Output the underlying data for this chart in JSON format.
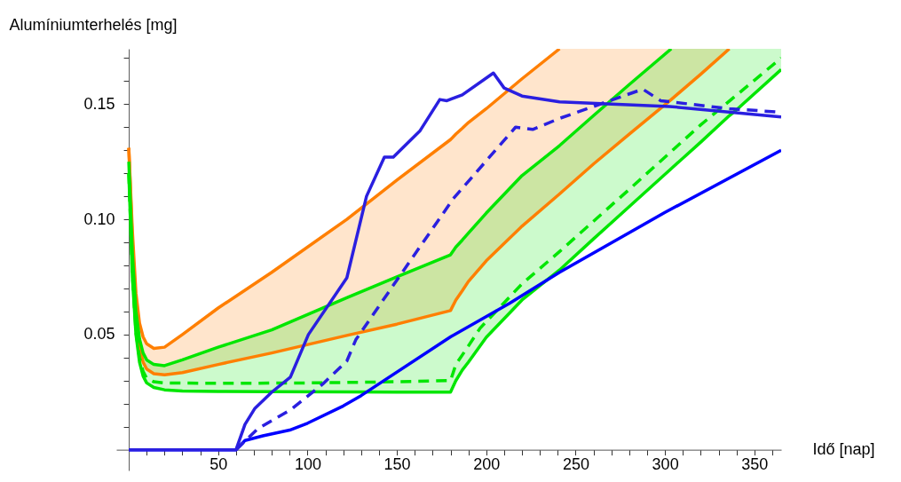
{
  "chart_data": {
    "type": "line",
    "xlabel": "Idő [nap]",
    "ylabel": "Alumíniumterhelés [mg]",
    "xlim": [
      -7,
      365
    ],
    "ylim": [
      -0.009,
      0.174
    ],
    "xticks": [
      {
        "value": 10,
        "label": null
      },
      {
        "value": 20,
        "label": null
      },
      {
        "value": 30,
        "label": null
      },
      {
        "value": 40,
        "label": null
      },
      50,
      {
        "value": 60,
        "label": null
      },
      {
        "value": 70,
        "label": null
      },
      {
        "value": 80,
        "label": null
      },
      {
        "value": 90,
        "label": null
      },
      100,
      {
        "value": 110,
        "label": null
      },
      {
        "value": 120,
        "label": null
      },
      {
        "value": 130,
        "label": null
      },
      {
        "value": 140,
        "label": null
      },
      150,
      {
        "value": 160,
        "label": null
      },
      {
        "value": 170,
        "label": null
      },
      {
        "value": 180,
        "label": null
      },
      {
        "value": 190,
        "label": null
      },
      200,
      {
        "value": 210,
        "label": null
      },
      {
        "value": 220,
        "label": null
      },
      {
        "value": 230,
        "label": null
      },
      {
        "value": 240,
        "label": null
      },
      250,
      {
        "value": 260,
        "label": null
      },
      {
        "value": 270,
        "label": null
      },
      {
        "value": 280,
        "label": null
      },
      {
        "value": 290,
        "label": null
      },
      300,
      {
        "value": 310,
        "label": null
      },
      {
        "value": 320,
        "label": null
      },
      {
        "value": 330,
        "label": null
      },
      {
        "value": 340,
        "label": null
      },
      350,
      {
        "value": 360,
        "label": null
      }
    ],
    "yticks": [
      {
        "value": 0.01,
        "label": null
      },
      {
        "value": 0.02,
        "label": null
      },
      {
        "value": 0.03,
        "label": null
      },
      {
        "value": 0.04,
        "label": null
      },
      {
        "value": 0.05,
        "label": "0.05"
      },
      {
        "value": 0.06,
        "label": null
      },
      {
        "value": 0.07,
        "label": null
      },
      {
        "value": 0.08,
        "label": null
      },
      {
        "value": 0.09,
        "label": null
      },
      {
        "value": 0.1,
        "label": "0.10"
      },
      {
        "value": 0.11,
        "label": null
      },
      {
        "value": 0.12,
        "label": null
      },
      {
        "value": 0.13,
        "label": null
      },
      {
        "value": 0.14,
        "label": null
      },
      {
        "value": 0.15,
        "label": "0.15"
      },
      {
        "value": 0.16,
        "label": null
      },
      {
        "value": 0.17,
        "label": null
      }
    ],
    "grid": false,
    "series": [
      {
        "color": "#ff7f00",
        "line_style": "solid",
        "x": [
          0,
          2,
          4,
          6,
          8,
          10,
          14,
          20,
          30,
          50,
          80,
          122,
          150,
          180,
          183,
          186.6,
          190,
          200,
          220,
          241,
          260,
          280,
          303.5,
          320,
          336
        ],
        "values": [
          0.131,
          0.095,
          0.068,
          0.055,
          0.049,
          0.046,
          0.044,
          0.0445,
          0.05,
          0.0615,
          0.077,
          0.1,
          0.117,
          0.1346,
          0.137,
          0.1395,
          0.142,
          0.148,
          0.161,
          0.174,
          null,
          null,
          null,
          null,
          null
        ],
        "upper": [
          0.131,
          0.095,
          0.068,
          0.055,
          0.049,
          0.046,
          0.044,
          0.0445,
          0.05,
          0.0615,
          0.077,
          0.1,
          0.117,
          0.1346,
          0.137,
          0.1395,
          0.142,
          0.148,
          0.161,
          0.174,
          0.174,
          0.174,
          0.174,
          0.174,
          0.174
        ],
        "lower": [
          0.131,
          0.09,
          0.06,
          0.045,
          0.038,
          0.035,
          0.033,
          0.0325,
          0.0335,
          0.037,
          0.042,
          0.0496,
          0.0545,
          0.0604,
          0.065,
          0.069,
          0.073,
          0.082,
          0.097,
          0.111,
          0.124,
          0.137,
          0.152,
          0.163,
          0.174
        ]
      },
      {
        "color": "#ff7f00",
        "line_style": "solid",
        "x": [
          0,
          2,
          4,
          6,
          8,
          10,
          14,
          20,
          30,
          50,
          80,
          122,
          150,
          180,
          183,
          186.6,
          190,
          200,
          220,
          241,
          260,
          280,
          303.5,
          320,
          336
        ],
        "values": [
          0.131,
          0.09,
          0.06,
          0.045,
          0.038,
          0.035,
          0.033,
          0.0325,
          0.0335,
          0.037,
          0.042,
          0.0496,
          0.0545,
          0.0604,
          0.065,
          0.069,
          0.073,
          0.082,
          0.097,
          0.111,
          0.124,
          0.137,
          0.152,
          0.163,
          0.174
        ]
      },
      {
        "color": "#00e600",
        "line_style": "solid",
        "x": [
          0,
          2,
          4,
          6,
          8,
          10,
          14,
          20,
          30,
          50,
          80,
          122,
          150,
          180,
          183,
          186.6,
          190,
          200,
          220,
          241,
          260,
          280,
          303.5,
          320,
          336,
          340,
          365
        ],
        "values": [
          0.125,
          0.085,
          0.06,
          0.048,
          0.042,
          0.039,
          0.037,
          0.0365,
          0.039,
          0.0445,
          0.052,
          0.066,
          0.075,
          0.0846,
          0.088,
          0.091,
          0.094,
          0.1027,
          0.119,
          0.132,
          0.145,
          0.1585,
          0.174,
          null,
          null,
          null,
          null
        ],
        "upper": [
          0.125,
          0.085,
          0.06,
          0.048,
          0.042,
          0.039,
          0.037,
          0.0365,
          0.039,
          0.0445,
          0.052,
          0.066,
          0.075,
          0.0846,
          0.088,
          0.091,
          0.094,
          0.1027,
          0.119,
          0.132,
          0.145,
          0.1585,
          0.174,
          0.174,
          0.174,
          0.174,
          0.174
        ],
        "lower": [
          0.12,
          0.075,
          0.05,
          0.038,
          0.032,
          0.029,
          0.027,
          0.026,
          0.0255,
          0.0253,
          0.0252,
          0.0251,
          0.025,
          0.025,
          0.03,
          0.0346,
          0.038,
          0.0488,
          0.065,
          0.078,
          0.0915,
          0.1055,
          0.122,
          0.1335,
          0.145,
          0.1475,
          0.165
        ]
      },
      {
        "color": "#00e600",
        "line_style": "solid",
        "x": [
          0,
          2,
          4,
          6,
          8,
          10,
          14,
          20,
          30,
          50,
          80,
          122,
          150,
          180,
          183,
          186.6,
          190,
          200,
          220,
          241,
          260,
          280,
          303.5,
          320,
          336,
          340,
          365
        ],
        "values": [
          0.12,
          0.075,
          0.05,
          0.038,
          0.032,
          0.029,
          0.027,
          0.026,
          0.0255,
          0.0253,
          0.0252,
          0.0251,
          0.025,
          0.025,
          0.03,
          0.0346,
          0.038,
          0.0488,
          0.065,
          0.078,
          0.0915,
          0.1055,
          0.122,
          0.1335,
          0.145,
          0.1475,
          0.165
        ]
      },
      {
        "color": "#00e600",
        "line_style": "dashed",
        "x": [
          0,
          2,
          4,
          6,
          8,
          10,
          14,
          20,
          50,
          100,
          150,
          180,
          183,
          190,
          196.5,
          220,
          241,
          280,
          320,
          365
        ],
        "values": [
          0.12,
          0.076,
          0.051,
          0.04,
          0.034,
          0.031,
          0.0295,
          0.029,
          0.0288,
          0.029,
          0.0295,
          0.03,
          0.037,
          0.045,
          0.0527,
          0.072,
          0.086,
          0.113,
          0.141,
          0.17
        ]
      },
      {
        "color": "#0000ff",
        "line_style": "solid",
        "x": [
          0,
          60,
          65,
          75,
          90,
          100,
          120,
          130,
          180,
          213,
          241,
          300,
          365
        ],
        "values": [
          0,
          0,
          0.004,
          0.006,
          0.0085,
          0.0115,
          0.019,
          0.0235,
          0.049,
          0.0635,
          0.077,
          0.103,
          0.13
        ]
      },
      {
        "color": "#2a1fe0",
        "line_style": "solid",
        "x": [
          0,
          60,
          65,
          70.6,
          80,
          90.4,
          100.5,
          122,
          133,
          143,
          148,
          163,
          174,
          178,
          186.6,
          204,
          210,
          220,
          241,
          302.5,
          365
        ],
        "values": [
          0,
          0,
          0.011,
          0.018,
          0.025,
          0.0315,
          0.05,
          0.0746,
          0.11,
          0.127,
          0.127,
          0.1385,
          0.152,
          0.1515,
          0.154,
          0.1635,
          0.157,
          0.1535,
          0.151,
          0.149,
          0.1444
        ]
      },
      {
        "color": "#2a1fe0",
        "line_style": "dashed",
        "x": [
          60,
          72,
          90.5,
          108.5,
          122,
          127,
          145,
          181.6,
          216.4,
          226,
          241,
          287.6,
          297.5,
          336,
          365
        ],
        "values": [
          0,
          0.009,
          0.0173,
          0.0285,
          0.0385,
          0.0477,
          0.068,
          0.109,
          0.14,
          0.139,
          0.1438,
          0.1565,
          0.1515,
          0.148,
          0.1465
        ]
      }
    ]
  }
}
